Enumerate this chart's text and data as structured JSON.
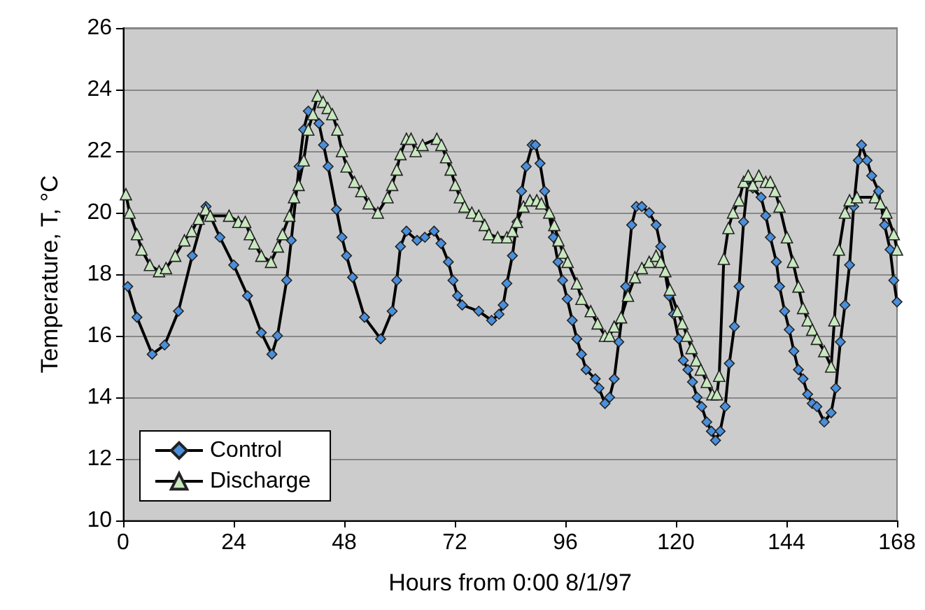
{
  "chart_data": {
    "type": "line",
    "xlabel": "Hours from 0:00 8/1/97",
    "ylabel": "Temperature, T, °C",
    "xlim": [
      0,
      168
    ],
    "xticks": [
      0,
      24,
      48,
      72,
      96,
      120,
      144,
      168
    ],
    "ylim": [
      10,
      26
    ],
    "yticks": [
      10,
      12,
      14,
      16,
      18,
      20,
      22,
      24,
      26
    ],
    "grid": "y",
    "legend": "bottom left",
    "line_style": "solid",
    "series": [
      {
        "name": "Control",
        "color": "#4a8fdc",
        "marker": "diamond",
        "x": [
          1,
          3,
          6.3,
          9,
          12,
          15,
          18,
          21,
          24,
          27,
          30,
          32.3,
          33.5,
          35.5,
          36.5,
          38.2,
          39.2,
          40.2,
          42.5,
          43.5,
          44.5,
          46.3,
          47.5,
          48.5,
          49.8,
          52.4,
          55.9,
          58.4,
          59.4,
          60.2,
          61.5,
          63.8,
          65.5,
          67.5,
          69,
          70.6,
          71.6,
          72.6,
          73.6,
          77.2,
          80,
          81.6,
          82.5,
          83.3,
          84.5,
          85.5,
          86.5,
          87.5,
          88.8,
          89.5,
          90.5,
          91.5,
          93.4,
          94.4,
          95.4,
          96.4,
          97.5,
          98.5,
          99.5,
          100.5,
          102.5,
          103.3,
          104.6,
          105.6,
          106.6,
          107.6,
          109.1,
          110.4,
          111.4,
          112.6,
          114.2,
          115.7,
          116.7,
          118.5,
          119.5,
          120.6,
          121.6,
          122.6,
          123.6,
          124.6,
          125.6,
          126.7,
          127.7,
          128.6,
          129.6,
          130.7,
          131.6,
          132.7,
          133.7,
          134.7,
          135.7,
          136.7,
          138.5,
          139.5,
          140.5,
          141.8,
          142.5,
          143.6,
          144.6,
          145.6,
          146.6,
          147.6,
          148.6,
          149.6,
          150.6,
          152.2,
          153.7,
          154.7,
          155.7,
          156.7,
          157.7,
          158.6,
          159.6,
          160.3,
          161.5,
          162.5,
          164,
          165.3,
          166.5,
          167.3,
          168
        ],
        "values": [
          17.6,
          16.6,
          15.4,
          15.7,
          16.8,
          18.6,
          20.2,
          19.2,
          18.3,
          17.3,
          16.1,
          15.4,
          16,
          17.8,
          19.1,
          21.5,
          22.7,
          23.3,
          22.9,
          22.2,
          21.5,
          20.1,
          19.2,
          18.6,
          17.9,
          16.6,
          15.9,
          16.8,
          17.8,
          18.9,
          19.4,
          19.1,
          19.2,
          19.4,
          19,
          18.4,
          17.8,
          17.3,
          17,
          16.8,
          16.5,
          16.7,
          17,
          17.7,
          18.6,
          19.7,
          20.7,
          21.5,
          22.2,
          22.2,
          21.6,
          20.7,
          19.2,
          18.4,
          17.8,
          17.2,
          16.5,
          15.9,
          15.4,
          14.9,
          14.6,
          14.3,
          13.8,
          14,
          14.6,
          15.8,
          17.6,
          19.6,
          20.2,
          20.2,
          20,
          19.6,
          18.9,
          17.3,
          16.7,
          15.9,
          15.2,
          14.9,
          14.5,
          14,
          13.7,
          13.2,
          12.9,
          12.6,
          12.9,
          13.7,
          15.1,
          16.3,
          17.6,
          19.7,
          21.1,
          20.8,
          20.5,
          19.9,
          19.2,
          18.4,
          17.6,
          16.8,
          16.2,
          15.5,
          14.9,
          14.6,
          14.1,
          13.8,
          13.7,
          13.2,
          13.5,
          14.3,
          15.8,
          17,
          18.3,
          20.2,
          21.7,
          22.2,
          21.7,
          21.2,
          20.7,
          19.6,
          18.8,
          17.8,
          17.1
        ]
      },
      {
        "name": "Discharge",
        "color": "#c8e8c0",
        "marker": "triangle",
        "x": [
          0.6,
          1.4,
          3,
          4,
          5.8,
          7.8,
          9.3,
          11.3,
          13.3,
          14.9,
          16.4,
          17.9,
          18.9,
          23,
          25,
          26.5,
          27.5,
          28.5,
          30,
          32.1,
          33.6,
          34.6,
          36.1,
          37.1,
          38.1,
          39.2,
          40.2,
          41.2,
          42.2,
          43.4,
          44.4,
          45.4,
          46.5,
          47.5,
          48.5,
          50.2,
          51.7,
          53.3,
          55.3,
          57.4,
          58.4,
          59.4,
          60.2,
          61.5,
          62.5,
          63.5,
          65,
          68.1,
          69.1,
          70.1,
          71.1,
          72.1,
          73.1,
          74.1,
          75.7,
          77.2,
          78.5,
          79.4,
          81.3,
          83.3,
          84.5,
          85.5,
          86.9,
          88.3,
          89.8,
          90.8,
          92.5,
          93.6,
          94.5,
          95.5,
          96.5,
          98.5,
          99.5,
          101.5,
          103,
          104.6,
          105.6,
          106.6,
          108.1,
          109.6,
          111.1,
          112.6,
          114.2,
          115.7,
          116.7,
          117.7,
          118.7,
          120.3,
          121.4,
          122.4,
          123.4,
          124.4,
          125.4,
          126.7,
          127.9,
          128.9,
          129.4,
          130.4,
          131.4,
          132.4,
          133.7,
          134.7,
          135.7,
          136.7,
          138,
          139.5,
          140.5,
          141.5,
          142.5,
          144.1,
          145.4,
          146.6,
          147.6,
          148.6,
          149.6,
          150.6,
          152.2,
          153.7,
          154.4,
          155.4,
          156.7,
          157.7,
          159.3,
          163.2,
          164.4,
          165.7,
          167.3,
          168
        ],
        "values": [
          20.6,
          20,
          19.3,
          18.8,
          18.3,
          18.1,
          18.2,
          18.6,
          19.1,
          19.4,
          19.8,
          20.1,
          19.9,
          19.9,
          19.7,
          19.7,
          19.3,
          19,
          18.6,
          18.4,
          18.9,
          19.3,
          19.9,
          20.5,
          20.9,
          21.7,
          22.7,
          23.2,
          23.8,
          23.6,
          23.4,
          23.2,
          22.7,
          22,
          21.5,
          21,
          20.7,
          20.3,
          20,
          20.5,
          20.9,
          21.4,
          21.9,
          22.4,
          22.4,
          22,
          22.2,
          22.4,
          22.2,
          21.8,
          21.4,
          20.9,
          20.5,
          20.2,
          20,
          19.9,
          19.6,
          19.3,
          19.2,
          19.2,
          19.4,
          19.7,
          20.2,
          20.4,
          20.4,
          20.3,
          20,
          19.6,
          19.1,
          18.7,
          18.4,
          17.7,
          17.2,
          16.8,
          16.4,
          16,
          16,
          16.3,
          16.6,
          17.3,
          17.9,
          18.2,
          18.4,
          18.6,
          18.4,
          18.1,
          17.5,
          16.8,
          16.4,
          16,
          15.6,
          15.2,
          14.9,
          14.5,
          14.1,
          14.1,
          14.7,
          18.5,
          19.5,
          20,
          20.4,
          21,
          21.2,
          20.9,
          21.2,
          21,
          21,
          20.7,
          20.2,
          19.2,
          18.4,
          17.6,
          16.9,
          16.5,
          16.2,
          15.9,
          15.5,
          15,
          16.5,
          18.8,
          20,
          20.4,
          20.5,
          20.5,
          20.3,
          20,
          19.3,
          18.8
        ]
      }
    ]
  }
}
